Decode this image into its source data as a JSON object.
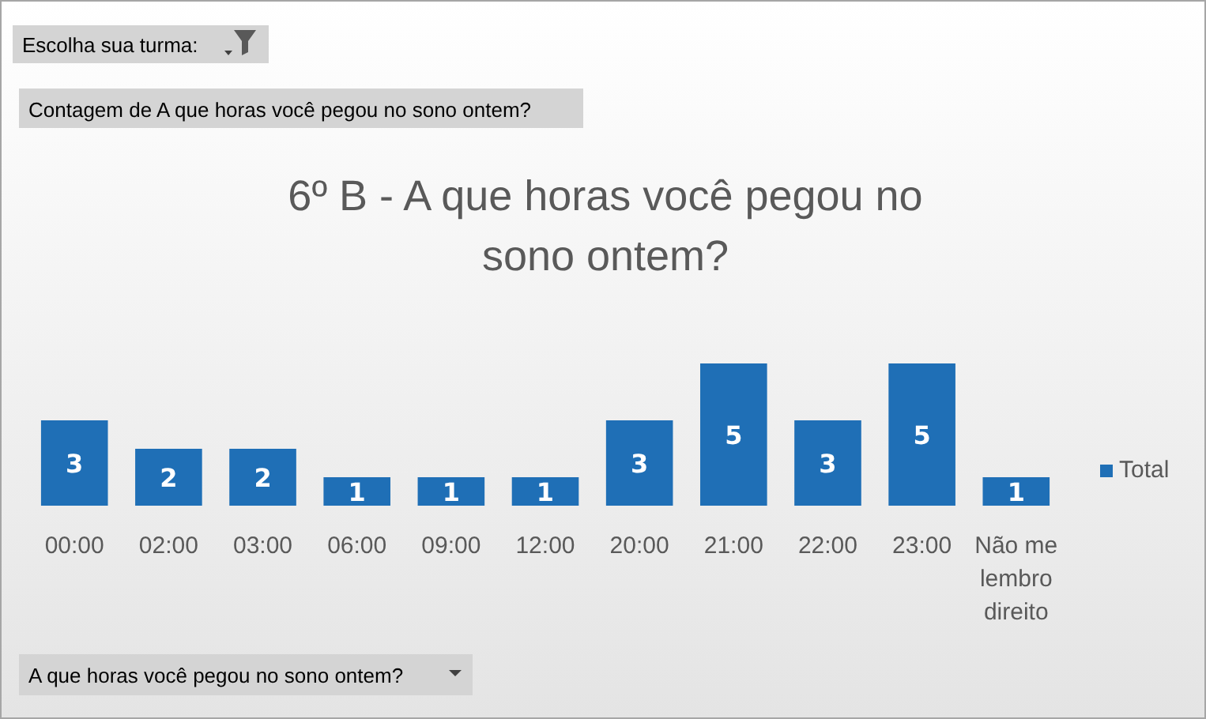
{
  "chart_data": {
    "type": "bar",
    "title": "6º B - A que horas você pegou no sono ontem?",
    "categories": [
      "00:00",
      "02:00",
      "03:00",
      "06:00",
      "09:00",
      "12:00",
      "20:00",
      "21:00",
      "22:00",
      "23:00",
      "Não me lembro direito"
    ],
    "series": [
      {
        "name": "Total",
        "color": "#1f6fb6",
        "values": [
          3,
          2,
          2,
          1,
          1,
          1,
          3,
          5,
          3,
          5,
          1
        ]
      }
    ],
    "data_labels": true,
    "legend": "right",
    "grid": false,
    "annotations": [
      "Escolha sua turma:",
      "Contagem de A que horas você pegou no sono ontem?",
      "A que horas você pegou no sono ontem?"
    ]
  }
}
